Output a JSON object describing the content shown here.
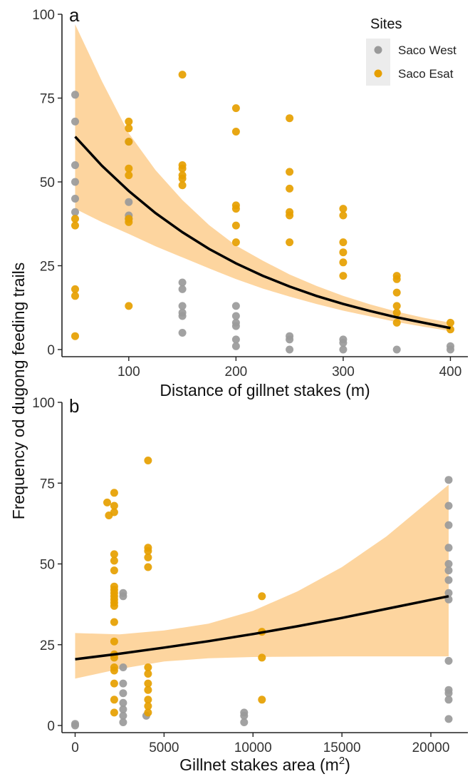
{
  "panel_a_tag": "a",
  "panel_b_tag": "b",
  "shared_ylabel": "Frequency od dugong feeding trails",
  "legend": {
    "title": "Sites",
    "items": [
      {
        "label": "Saco West",
        "color": "#9a9a9a"
      },
      {
        "label": "Saco Esat",
        "color": "#e69f00"
      }
    ]
  },
  "colors": {
    "ribbon": "#fdd39a",
    "fit_line": "#000000",
    "axis": "#222222"
  },
  "chart_data": [
    {
      "type": "scatter",
      "panel": "a",
      "xlabel": "Distance of gillnet stakes (m)",
      "xlim": [
        45,
        405
      ],
      "ylim": [
        0,
        100
      ],
      "xticks": [
        100,
        200,
        300,
        400
      ],
      "xtick_labels": [
        "100",
        "200",
        "300",
        "400"
      ],
      "yticks": [
        0,
        25,
        50,
        75,
        100
      ],
      "ytick_labels": [
        "0",
        "25",
        "50",
        "75",
        "100"
      ],
      "series": [
        {
          "name": "Saco West",
          "color": "#9a9a9a",
          "points": [
            [
              50,
              76
            ],
            [
              50,
              68
            ],
            [
              50,
              55
            ],
            [
              50,
              50
            ],
            [
              50,
              45
            ],
            [
              50,
              41
            ],
            [
              100,
              62
            ],
            [
              100,
              44
            ],
            [
              100,
              40
            ],
            [
              100,
              39
            ],
            [
              150,
              20
            ],
            [
              150,
              18
            ],
            [
              150,
              13
            ],
            [
              150,
              11
            ],
            [
              150,
              10
            ],
            [
              150,
              5
            ],
            [
              200,
              13
            ],
            [
              200,
              10
            ],
            [
              200,
              8
            ],
            [
              200,
              7
            ],
            [
              200,
              3
            ],
            [
              200,
              1
            ],
            [
              250,
              4
            ],
            [
              250,
              3
            ],
            [
              250,
              0
            ],
            [
              300,
              3
            ],
            [
              300,
              2
            ],
            [
              300,
              0
            ],
            [
              350,
              0
            ],
            [
              400,
              1
            ],
            [
              400,
              0
            ]
          ]
        },
        {
          "name": "Saco Esat",
          "color": "#e69f00",
          "points": [
            [
              50,
              39
            ],
            [
              50,
              37
            ],
            [
              50,
              18
            ],
            [
              50,
              16
            ],
            [
              50,
              4
            ],
            [
              100,
              68
            ],
            [
              100,
              66
            ],
            [
              100,
              62
            ],
            [
              100,
              54
            ],
            [
              100,
              52
            ],
            [
              100,
              39
            ],
            [
              100,
              38
            ],
            [
              100,
              13
            ],
            [
              150,
              82
            ],
            [
              150,
              55
            ],
            [
              150,
              54
            ],
            [
              150,
              52
            ],
            [
              150,
              51
            ],
            [
              150,
              49
            ],
            [
              200,
              72
            ],
            [
              200,
              65
            ],
            [
              200,
              43
            ],
            [
              200,
              42
            ],
            [
              200,
              37
            ],
            [
              200,
              32
            ],
            [
              250,
              69
            ],
            [
              250,
              53
            ],
            [
              250,
              48
            ],
            [
              250,
              41
            ],
            [
              250,
              40
            ],
            [
              250,
              32
            ],
            [
              300,
              42
            ],
            [
              300,
              40
            ],
            [
              300,
              32
            ],
            [
              300,
              29
            ],
            [
              300,
              26
            ],
            [
              300,
              22
            ],
            [
              350,
              22
            ],
            [
              350,
              21
            ],
            [
              350,
              17
            ],
            [
              350,
              13
            ],
            [
              350,
              11
            ],
            [
              350,
              8
            ],
            [
              400,
              8
            ],
            [
              400,
              6
            ]
          ]
        }
      ],
      "fit": {
        "x": [
          50,
          75,
          100,
          125,
          150,
          175,
          200,
          225,
          250,
          275,
          300,
          325,
          350,
          375,
          400
        ],
        "y": [
          63.5,
          54.8,
          47.3,
          40.7,
          35.0,
          30.0,
          25.7,
          22.0,
          18.8,
          16.0,
          13.6,
          11.5,
          9.6,
          8.0,
          6.4
        ],
        "lower": [
          42.0,
          38.0,
          34.5,
          30.8,
          27.5,
          24.2,
          21.0,
          18.2,
          15.8,
          13.6,
          11.6,
          9.9,
          8.2,
          6.8,
          5.5
        ],
        "upper": [
          97.0,
          80.0,
          64.5,
          53.5,
          44.6,
          37.1,
          31.0,
          26.5,
          22.4,
          19.0,
          16.0,
          13.5,
          11.3,
          9.5,
          8.0
        ]
      }
    },
    {
      "type": "scatter",
      "panel": "b",
      "xlabel": "Gillnet stakes area (m",
      "xlabel_sup": "2",
      "xlabel_end": ")",
      "xlim": [
        -300,
        21400
      ],
      "ylim": [
        0,
        100
      ],
      "xticks": [
        0,
        5000,
        10000,
        15000,
        20000
      ],
      "xtick_labels": [
        "0",
        "5000",
        "10000",
        "15000",
        "20000"
      ],
      "yticks": [
        0,
        25,
        50,
        75,
        100
      ],
      "ytick_labels": [
        "0",
        "25",
        "50",
        "75",
        "100"
      ],
      "series": [
        {
          "name": "Saco West",
          "color": "#9a9a9a",
          "points": [
            [
              0,
              0
            ],
            [
              0,
              0.5
            ],
            [
              2700,
              41
            ],
            [
              2700,
              40
            ],
            [
              2700,
              18
            ],
            [
              2700,
              13
            ],
            [
              2700,
              10
            ],
            [
              2700,
              7
            ],
            [
              2700,
              5
            ],
            [
              2700,
              3
            ],
            [
              2700,
              1
            ],
            [
              4000,
              3
            ],
            [
              9500,
              4
            ],
            [
              9500,
              3
            ],
            [
              9500,
              1
            ],
            [
              21000,
              76
            ],
            [
              21000,
              68
            ],
            [
              21000,
              62
            ],
            [
              21000,
              55
            ],
            [
              21000,
              50
            ],
            [
              21000,
              48
            ],
            [
              21000,
              45
            ],
            [
              21000,
              41
            ],
            [
              21000,
              39
            ],
            [
              21000,
              20
            ],
            [
              21000,
              11
            ],
            [
              21000,
              10
            ],
            [
              21000,
              8
            ],
            [
              21000,
              2
            ]
          ]
        },
        {
          "name": "Saco Esat",
          "color": "#e69f00",
          "points": [
            [
              1800,
              69
            ],
            [
              1900,
              65
            ],
            [
              2200,
              72
            ],
            [
              2200,
              68
            ],
            [
              2200,
              66
            ],
            [
              2200,
              53
            ],
            [
              2200,
              51
            ],
            [
              2200,
              48
            ],
            [
              2200,
              43
            ],
            [
              2200,
              42
            ],
            [
              2200,
              41
            ],
            [
              2200,
              40
            ],
            [
              2200,
              39
            ],
            [
              2200,
              38
            ],
            [
              2200,
              37
            ],
            [
              2200,
              32
            ],
            [
              2200,
              26
            ],
            [
              2200,
              22
            ],
            [
              2200,
              21
            ],
            [
              2200,
              18
            ],
            [
              2200,
              17
            ],
            [
              2200,
              13
            ],
            [
              2200,
              8
            ],
            [
              2200,
              4
            ],
            [
              4100,
              82
            ],
            [
              4100,
              55
            ],
            [
              4100,
              54
            ],
            [
              4100,
              52
            ],
            [
              4100,
              49
            ],
            [
              4100,
              18
            ],
            [
              4100,
              16
            ],
            [
              4100,
              13
            ],
            [
              4100,
              11
            ],
            [
              4100,
              8
            ],
            [
              4100,
              6
            ],
            [
              4100,
              4
            ],
            [
              10500,
              40
            ],
            [
              10500,
              29
            ],
            [
              10500,
              21
            ],
            [
              10500,
              8
            ]
          ]
        }
      ],
      "fit": {
        "x": [
          0,
          2500,
          5000,
          7500,
          10000,
          12500,
          15000,
          17500,
          21000
        ],
        "y": [
          20.5,
          22.2,
          24.1,
          26.1,
          28.3,
          30.7,
          33.3,
          36.1,
          40.0
        ],
        "lower": [
          14.5,
          17.5,
          19.8,
          20.8,
          21.2,
          21.3,
          21.4,
          21.4,
          21.4
        ],
        "upper": [
          28.6,
          28.2,
          29.4,
          31.5,
          35.5,
          41.5,
          49.0,
          58.5,
          74.5
        ]
      }
    }
  ]
}
